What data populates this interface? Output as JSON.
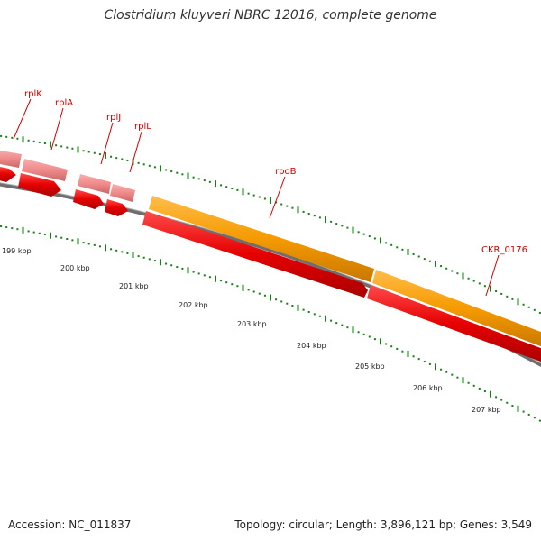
{
  "title": "Clostridium kluyveri NBRC 12016, complete genome",
  "footer": {
    "accession": "Accession: NC_011837",
    "summary": "Topology: circular; Length: 3,896,121 bp; Genes: 3,549"
  },
  "colors": {
    "gene_red": "#e60000",
    "gene_pink": "#f08a8a",
    "gene_orange": "#f59a00",
    "backbone": "#808080",
    "tick_green": "#1d7a1d",
    "label_red": "#cc0000"
  },
  "scale": {
    "labels": [
      "199 kbp",
      "200 kbp",
      "201 kbp",
      "202 kbp",
      "203 kbp",
      "204 kbp",
      "205 kbp",
      "206 kbp",
      "207 kbp"
    ]
  },
  "gene_labels": [
    "rplK",
    "rplA",
    "rplJ",
    "rplL",
    "rpoB",
    "CKR_0176"
  ]
}
